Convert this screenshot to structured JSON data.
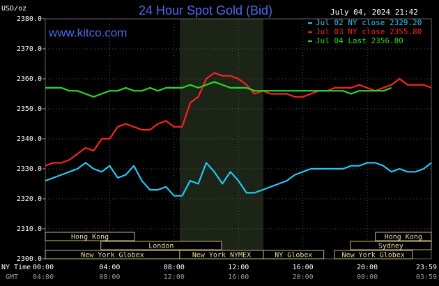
{
  "chart_data": {
    "type": "line",
    "title": "24 Hour Spot Gold (Bid)",
    "timestamp": "July 04, 2024 21:42",
    "source": "www.kitco.com",
    "ylabel": "USD/oz",
    "xlabel": "NY Time",
    "x2label": "GMT",
    "x": [
      0,
      0.5,
      1,
      1.5,
      2,
      2.5,
      3,
      3.5,
      4,
      4.5,
      5,
      5.5,
      6,
      6.5,
      7,
      7.5,
      8,
      8.5,
      9,
      9.5,
      10,
      10.5,
      11,
      11.5,
      12,
      12.5,
      13,
      13.5,
      14,
      14.5,
      15,
      15.5,
      16,
      16.5,
      17,
      17.5,
      18,
      18.5,
      19,
      19.5,
      20,
      20.5,
      21,
      21.5,
      22,
      22.5,
      23,
      23.5,
      23.98
    ],
    "xlim": [
      0,
      23.98
    ],
    "xticks": [
      {
        "value": 0,
        "label": "00:00"
      },
      {
        "value": 4,
        "label": "04:00"
      },
      {
        "value": 8,
        "label": "08:00"
      },
      {
        "value": 12,
        "label": "12:00"
      },
      {
        "value": 16,
        "label": "16:00"
      },
      {
        "value": 20,
        "label": "20:00"
      },
      {
        "value": 23.98,
        "label": "23:59"
      }
    ],
    "x2ticks": [
      {
        "value": 0,
        "label": "04:00"
      },
      {
        "value": 4,
        "label": "08:00"
      },
      {
        "value": 8,
        "label": "12:00"
      },
      {
        "value": 12,
        "label": "16:00"
      },
      {
        "value": 16,
        "label": "20:00"
      },
      {
        "value": 20,
        "label": "00:00"
      },
      {
        "value": 23.98,
        "label": "03:59"
      }
    ],
    "ylim": [
      2300,
      2380
    ],
    "yticks": [
      {
        "value": 2300,
        "label": "2300.0"
      },
      {
        "value": 2310,
        "label": "2310.0"
      },
      {
        "value": 2320,
        "label": "2320.0"
      },
      {
        "value": 2330,
        "label": "2330.0"
      },
      {
        "value": 2340,
        "label": "2340.0"
      },
      {
        "value": 2350,
        "label": "2350.0"
      },
      {
        "value": 2360,
        "label": "2360.0"
      },
      {
        "value": 2370,
        "label": "2370.0"
      },
      {
        "value": 2380,
        "label": "2380.0"
      }
    ],
    "grid": true,
    "highlight": [
      8.35,
      13.55
    ],
    "series": [
      {
        "name": "Jul 02 NY close 2329.20",
        "color": "#22c8f5",
        "values": [
          2326,
          2327,
          2328,
          2329,
          2330,
          2332,
          2330,
          2329,
          2331,
          2327,
          2328,
          2331,
          2326,
          2323,
          2323,
          2324,
          2321,
          2321,
          2326,
          2325,
          2332,
          2329,
          2325,
          2329,
          2326,
          2322,
          2322,
          2323,
          2324,
          2325,
          2326,
          2328,
          2329,
          2330,
          2330,
          2330,
          2330,
          2330,
          2331,
          2331,
          2332,
          2332,
          2331,
          2329,
          2330,
          2329,
          2329,
          2330,
          2332
        ]
      },
      {
        "name": "Jul 03 NY close 2355.80",
        "color": "#ff2020",
        "values": [
          2331,
          2332,
          2332,
          2333,
          2335,
          2337,
          2336,
          2340,
          2340,
          2344,
          2345,
          2344,
          2343,
          2343,
          2345,
          2346,
          2344,
          2344,
          2352,
          2354,
          2360,
          2362,
          2361,
          2361,
          2360,
          2358,
          2355,
          2356,
          2355,
          2355,
          2355,
          2354,
          2354,
          2355,
          2356,
          2356,
          2357,
          2357,
          2357,
          2358,
          2357,
          2356,
          2357,
          2358,
          2360,
          2358,
          2358,
          2358,
          2357
        ]
      },
      {
        "name": "Jul 04 Last 2356.80",
        "color": "#22dd22",
        "values": [
          2357,
          2357,
          2357,
          2356,
          2356,
          2355,
          2354,
          2355,
          2356,
          2356,
          2357,
          2356,
          2356,
          2357,
          2356,
          2357,
          2357,
          2357,
          2358,
          2357,
          2358,
          2359,
          2358,
          2357,
          2357,
          2357,
          2356,
          2356,
          2356,
          2356,
          2356,
          2356,
          2356,
          2356,
          2356,
          2356,
          2356,
          2356,
          2355,
          2356,
          2356,
          2356,
          2356,
          2357,
          null,
          null,
          null,
          null,
          null
        ]
      }
    ],
    "sessions": [
      {
        "label": "Hong Kong",
        "start": 0,
        "end": 5.55,
        "row": 0
      },
      {
        "label": "Hong Kong",
        "start": 20.5,
        "end": 23.98,
        "row": 0
      },
      {
        "label": "London",
        "start": 3.45,
        "end": 10.95,
        "row": 1
      },
      {
        "label": "Sydney",
        "start": 18.95,
        "end": 23.98,
        "row": 1
      },
      {
        "label": "New York Globex",
        "start": 0,
        "end": 8.35,
        "row": 2
      },
      {
        "label": "New York NYMEX",
        "start": 8.35,
        "end": 13.55,
        "row": 2
      },
      {
        "label": "NY Globex",
        "start": 13.55,
        "end": 17.3,
        "row": 2
      },
      {
        "label": "New York Globex",
        "start": 17.95,
        "end": 22.8,
        "row": 2
      }
    ]
  }
}
